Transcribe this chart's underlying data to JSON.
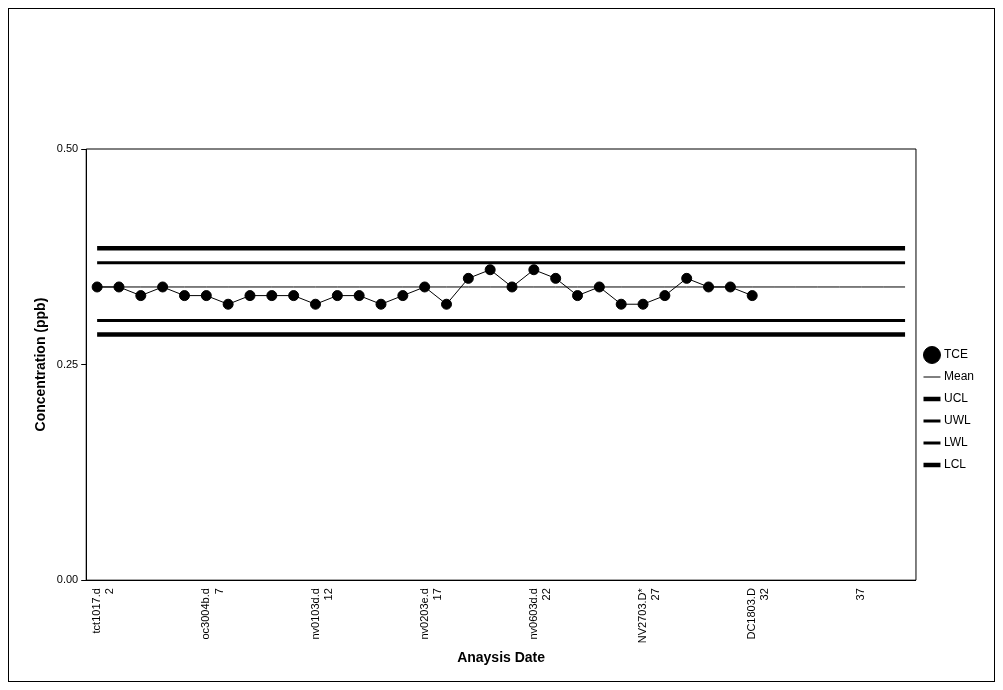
{
  "chart_data": {
    "type": "line",
    "xlabel": "Anaysis Date",
    "ylabel": "Concentration (ppb)",
    "categories": [
      "tct1017.d\n2",
      null,
      null,
      null,
      null,
      "oc3004b.d\n7",
      null,
      null,
      null,
      null,
      "nv0103d.d\n12",
      null,
      null,
      null,
      null,
      "nv0203e.d\n17",
      null,
      null,
      null,
      null,
      "nv0603d.d\n22",
      null,
      null,
      null,
      null,
      "NV2703.D*\n27",
      null,
      null,
      null,
      null,
      "DC1803.D\n32",
      null,
      null,
      null,
      null,
      "37",
      null,
      null
    ],
    "series": [
      {
        "name": "TCE",
        "color": "#000000",
        "marker": "circle",
        "values": [
          0.34,
          0.34,
          0.33,
          0.34,
          0.33,
          0.33,
          0.32,
          0.33,
          0.33,
          0.33,
          0.32,
          0.33,
          0.33,
          0.32,
          0.33,
          0.34,
          0.32,
          0.35,
          0.36,
          0.34,
          0.36,
          0.35,
          0.33,
          0.34,
          0.32,
          0.32,
          0.33,
          0.35,
          0.34,
          0.34,
          0.33,
          null,
          null,
          null,
          null,
          null,
          null,
          null
        ]
      },
      {
        "name": "Mean",
        "color": "#000000",
        "marker": "none",
        "values": [
          0.34,
          0.34,
          0.34,
          0.34,
          0.34,
          0.34,
          0.34,
          0.34,
          0.34,
          0.34,
          0.34,
          0.34,
          0.34,
          0.34,
          0.34,
          0.34,
          0.34,
          0.34,
          0.34,
          0.34,
          0.34,
          0.34,
          0.34,
          0.34,
          0.34,
          0.34,
          0.34,
          0.34,
          0.34,
          0.34,
          0.34,
          0.34,
          0.34,
          0.34,
          0.34,
          0.34,
          0.34,
          0.34
        ]
      },
      {
        "name": "UCL",
        "color": "#000000",
        "marker": "none",
        "values": [
          0.385,
          0.385,
          0.385,
          0.385,
          0.385,
          0.385,
          0.385,
          0.385,
          0.385,
          0.385,
          0.385,
          0.385,
          0.385,
          0.385,
          0.385,
          0.385,
          0.385,
          0.385,
          0.385,
          0.385,
          0.385,
          0.385,
          0.385,
          0.385,
          0.385,
          0.385,
          0.385,
          0.385,
          0.385,
          0.385,
          0.385,
          0.385,
          0.385,
          0.385,
          0.385,
          0.385,
          0.385,
          0.385
        ]
      },
      {
        "name": "UWL",
        "color": "#000000",
        "marker": "none",
        "values": [
          0.368,
          0.368,
          0.368,
          0.368,
          0.368,
          0.368,
          0.368,
          0.368,
          0.368,
          0.368,
          0.368,
          0.368,
          0.368,
          0.368,
          0.368,
          0.368,
          0.368,
          0.368,
          0.368,
          0.368,
          0.368,
          0.368,
          0.368,
          0.368,
          0.368,
          0.368,
          0.368,
          0.368,
          0.368,
          0.368,
          0.368,
          0.368,
          0.368,
          0.368,
          0.368,
          0.368,
          0.368,
          0.368
        ]
      },
      {
        "name": "LWL",
        "color": "#000000",
        "marker": "none",
        "values": [
          0.301,
          0.301,
          0.301,
          0.301,
          0.301,
          0.301,
          0.301,
          0.301,
          0.301,
          0.301,
          0.301,
          0.301,
          0.301,
          0.301,
          0.301,
          0.301,
          0.301,
          0.301,
          0.301,
          0.301,
          0.301,
          0.301,
          0.301,
          0.301,
          0.301,
          0.301,
          0.301,
          0.301,
          0.301,
          0.301,
          0.301,
          0.301,
          0.301,
          0.301,
          0.301,
          0.301,
          0.301,
          0.301
        ]
      },
      {
        "name": "LCL",
        "color": "#000000",
        "marker": "none",
        "values": [
          0.285,
          0.285,
          0.285,
          0.285,
          0.285,
          0.285,
          0.285,
          0.285,
          0.285,
          0.285,
          0.285,
          0.285,
          0.285,
          0.285,
          0.285,
          0.285,
          0.285,
          0.285,
          0.285,
          0.285,
          0.285,
          0.285,
          0.285,
          0.285,
          0.285,
          0.285,
          0.285,
          0.285,
          0.285,
          0.285,
          0.285,
          0.285,
          0.285,
          0.285,
          0.285,
          0.285,
          0.285,
          0.285
        ]
      }
    ],
    "ylim": [
      0,
      0.5
    ],
    "yticks": [
      {
        "value": 0,
        "label": "0.00"
      },
      {
        "value": 0.25,
        "label": "0.25"
      },
      {
        "value": 0.5,
        "label": "0.50"
      }
    ],
    "grid": false,
    "legend": "right",
    "line_style": "solid"
  }
}
